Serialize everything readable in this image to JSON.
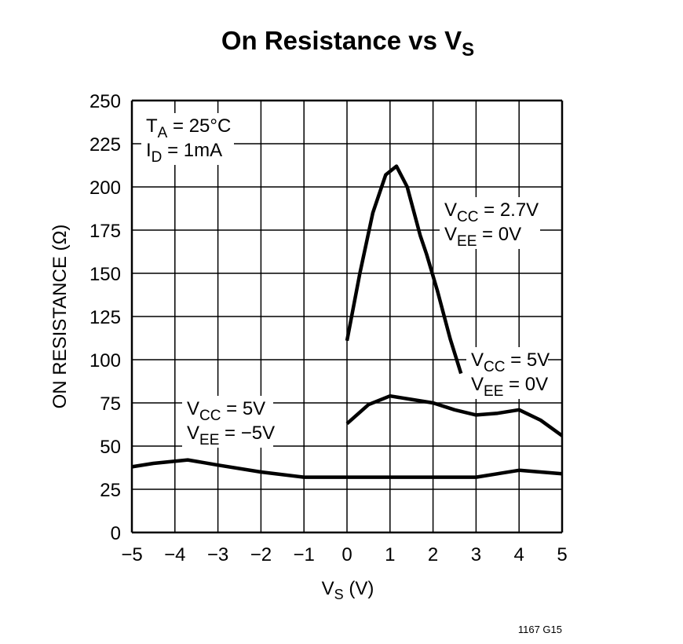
{
  "chart_data": {
    "type": "line",
    "title": "On Resistance vs V",
    "title_sub": "S",
    "xlabel": "V",
    "xlabel_sub": "S",
    "xlabel_unit": " (V)",
    "ylabel": "ON RESISTANCE (Ω)",
    "xlim": [
      -5,
      5
    ],
    "ylim": [
      0,
      250
    ],
    "grid": true,
    "x_ticks": [
      "−5",
      "−4",
      "−3",
      "−2",
      "−1",
      "0",
      "1",
      "2",
      "3",
      "4",
      "5"
    ],
    "y_ticks": [
      "0",
      "25",
      "50",
      "75",
      "100",
      "125",
      "150",
      "175",
      "200",
      "225",
      "250"
    ],
    "conditions": [
      {
        "main": "T",
        "sub": "A",
        "rest": " = 25°C"
      },
      {
        "main": "I",
        "sub": "D",
        "rest": " = 1mA"
      }
    ],
    "series": [
      {
        "name_lines": [
          {
            "main": "V",
            "sub": "CC",
            "rest": " = 2.7V"
          },
          {
            "main": "V",
            "sub": "EE",
            "rest": " = 0V"
          }
        ],
        "x": [
          0,
          0.3,
          0.6,
          0.9,
          1.15,
          1.4,
          1.7,
          1.85,
          2.1,
          2.4,
          2.65
        ],
        "y": [
          111,
          150,
          185,
          207,
          212,
          200,
          172,
          161,
          140,
          112,
          92
        ]
      },
      {
        "name_lines": [
          {
            "main": "V",
            "sub": "CC",
            "rest": " = 5V"
          },
          {
            "main": "V",
            "sub": "EE",
            "rest": " = 0V"
          }
        ],
        "x": [
          0,
          0.5,
          1,
          1.5,
          2,
          2.5,
          3,
          3.5,
          4,
          4.5,
          5
        ],
        "y": [
          63,
          74,
          79,
          77,
          75,
          71,
          68,
          69,
          71,
          65,
          56
        ]
      },
      {
        "name_lines": [
          {
            "main": "V",
            "sub": "CC",
            "rest": " = 5V"
          },
          {
            "main": "V",
            "sub": "EE",
            "rest": " = −5V"
          }
        ],
        "x": [
          -5,
          -4.5,
          -3.7,
          -3,
          -2,
          -1,
          0,
          1,
          2,
          3,
          4,
          5
        ],
        "y": [
          38,
          40,
          42,
          39,
          35,
          32,
          32,
          32,
          32,
          32,
          36,
          34
        ]
      }
    ],
    "footnote": "1167 G15",
    "line_color": "#000000"
  }
}
